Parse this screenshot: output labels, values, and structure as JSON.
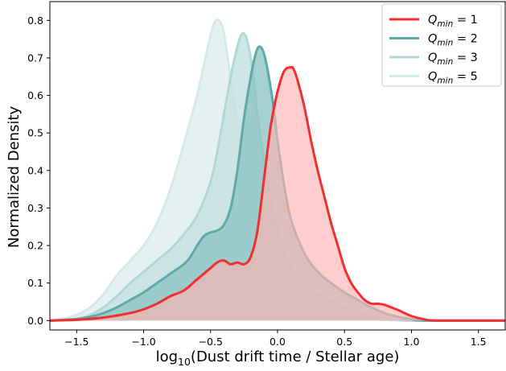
{
  "chart_data": {
    "type": "area",
    "xlabel_main": "log",
    "xlabel_sub": "10",
    "xlabel_rest": "(Dust drift time / Stellar age)",
    "ylabel": "Normalized Density",
    "xlim": [
      -1.7,
      1.7
    ],
    "ylim": [
      -0.025,
      0.85
    ],
    "xticks": [
      -1.5,
      -1.0,
      -0.5,
      0.0,
      0.5,
      1.0,
      1.5
    ],
    "xtick_labels": [
      "−1.5",
      "−1.0",
      "−0.5",
      "0.0",
      "0.5",
      "1.0",
      "1.5"
    ],
    "yticks": [
      0.0,
      0.1,
      0.2,
      0.3,
      0.4,
      0.5,
      0.6,
      0.7,
      0.8
    ],
    "ytick_labels": [
      "0.0",
      "0.1",
      "0.2",
      "0.3",
      "0.4",
      "0.5",
      "0.6",
      "0.7",
      "0.8"
    ],
    "grid": false,
    "legend_position": "top-right",
    "series": [
      {
        "name": "Q_min = 5",
        "legend_main": "Q",
        "legend_sub": "min",
        "legend_eq": " = 5",
        "color": "#d4ebea",
        "fill": "#e3f1f0",
        "fill_opacity": 0.9,
        "x": [
          -1.7,
          -1.6,
          -1.5,
          -1.4,
          -1.3,
          -1.2,
          -1.1,
          -1.0,
          -0.9,
          -0.8,
          -0.7,
          -0.6,
          -0.55,
          -0.5,
          -0.47,
          -0.44,
          -0.41,
          -0.38,
          -0.35,
          -0.3,
          -0.25,
          -0.2,
          -0.15,
          -0.1,
          -0.05,
          0.0,
          0.1,
          0.2,
          0.3,
          0.4,
          0.5,
          0.6,
          0.7,
          0.8,
          1.0,
          1.7
        ],
        "values": [
          0.0,
          0.005,
          0.015,
          0.035,
          0.07,
          0.12,
          0.16,
          0.2,
          0.26,
          0.35,
          0.47,
          0.6,
          0.68,
          0.76,
          0.795,
          0.8,
          0.78,
          0.72,
          0.64,
          0.52,
          0.4,
          0.3,
          0.22,
          0.16,
          0.12,
          0.09,
          0.06,
          0.04,
          0.03,
          0.02,
          0.012,
          0.007,
          0.004,
          0.002,
          0.0,
          0.0
        ]
      },
      {
        "name": "Q_min = 3",
        "legend_main": "Q",
        "legend_sub": "min",
        "legend_eq": " = 3",
        "color": "#b1d8d6",
        "fill": "#c6e2e0",
        "fill_opacity": 0.85,
        "x": [
          -1.7,
          -1.5,
          -1.4,
          -1.3,
          -1.2,
          -1.1,
          -1.0,
          -0.9,
          -0.8,
          -0.7,
          -0.6,
          -0.5,
          -0.45,
          -0.4,
          -0.35,
          -0.3,
          -0.27,
          -0.24,
          -0.21,
          -0.18,
          -0.15,
          -0.1,
          -0.05,
          0.0,
          0.05,
          0.1,
          0.2,
          0.3,
          0.4,
          0.5,
          0.6,
          0.7,
          0.8,
          0.9,
          1.0,
          1.7
        ],
        "values": [
          0.0,
          0.005,
          0.015,
          0.035,
          0.065,
          0.1,
          0.13,
          0.16,
          0.19,
          0.23,
          0.28,
          0.37,
          0.45,
          0.55,
          0.65,
          0.73,
          0.762,
          0.76,
          0.72,
          0.65,
          0.55,
          0.42,
          0.32,
          0.24,
          0.18,
          0.14,
          0.1,
          0.07,
          0.05,
          0.035,
          0.022,
          0.012,
          0.006,
          0.002,
          0.0,
          0.0
        ]
      },
      {
        "name": "Q_min = 2",
        "legend_main": "Q",
        "legend_sub": "min",
        "legend_eq": " = 2",
        "color": "#5faaa8",
        "fill": "#8ec6c4",
        "fill_opacity": 0.8,
        "x": [
          -1.7,
          -1.5,
          -1.4,
          -1.3,
          -1.2,
          -1.1,
          -1.0,
          -0.9,
          -0.8,
          -0.7,
          -0.65,
          -0.6,
          -0.55,
          -0.5,
          -0.45,
          -0.4,
          -0.35,
          -0.3,
          -0.25,
          -0.2,
          -0.16,
          -0.13,
          -0.1,
          -0.07,
          -0.03,
          0.0,
          0.05,
          0.1,
          0.2,
          0.3,
          0.4,
          0.5,
          0.6,
          0.7,
          0.8,
          0.9,
          1.0,
          1.1,
          1.7
        ],
        "values": [
          0.0,
          0.004,
          0.01,
          0.02,
          0.035,
          0.055,
          0.075,
          0.1,
          0.125,
          0.15,
          0.17,
          0.2,
          0.225,
          0.235,
          0.24,
          0.255,
          0.3,
          0.4,
          0.54,
          0.65,
          0.715,
          0.73,
          0.71,
          0.66,
          0.57,
          0.48,
          0.36,
          0.27,
          0.18,
          0.13,
          0.1,
          0.075,
          0.055,
          0.035,
          0.02,
          0.01,
          0.004,
          0.0,
          0.0
        ]
      },
      {
        "name": "Q_min = 1",
        "legend_main": "Q",
        "legend_sub": "min",
        "legend_eq": " = 1",
        "color": "#ee3030",
        "fill": "#ffb2b2",
        "fill_opacity": 0.65,
        "x": [
          -1.7,
          -1.5,
          -1.3,
          -1.1,
          -1.0,
          -0.9,
          -0.8,
          -0.7,
          -0.6,
          -0.5,
          -0.45,
          -0.4,
          -0.35,
          -0.3,
          -0.25,
          -0.2,
          -0.15,
          -0.1,
          -0.05,
          0.0,
          0.05,
          0.1,
          0.12,
          0.15,
          0.2,
          0.25,
          0.3,
          0.35,
          0.4,
          0.45,
          0.5,
          0.55,
          0.6,
          0.65,
          0.7,
          0.75,
          0.8,
          0.85,
          0.9,
          1.0,
          1.1,
          1.2,
          1.7
        ],
        "values": [
          0.0,
          0.002,
          0.008,
          0.02,
          0.03,
          0.045,
          0.065,
          0.08,
          0.11,
          0.14,
          0.155,
          0.16,
          0.15,
          0.155,
          0.15,
          0.17,
          0.24,
          0.38,
          0.52,
          0.61,
          0.665,
          0.675,
          0.67,
          0.64,
          0.57,
          0.48,
          0.4,
          0.33,
          0.26,
          0.2,
          0.14,
          0.1,
          0.075,
          0.055,
          0.045,
          0.045,
          0.042,
          0.035,
          0.028,
          0.012,
          0.003,
          0.0,
          0.0
        ]
      }
    ]
  }
}
